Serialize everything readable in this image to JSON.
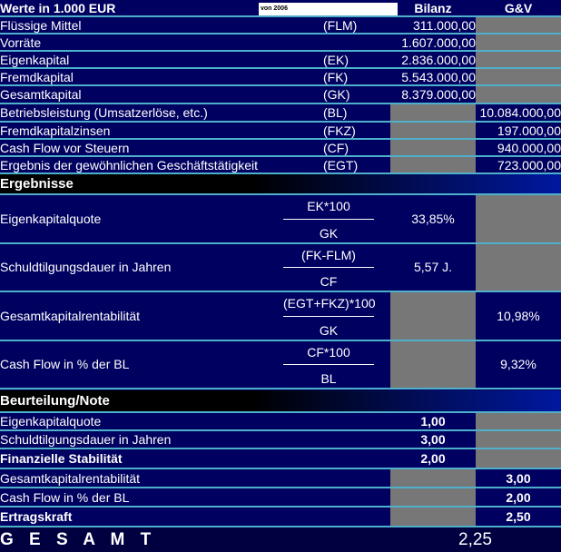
{
  "header": {
    "title": "Werte in 1.000 EUR",
    "year_field": "von 2006",
    "col_bilanz": "Bilanz",
    "col_guv": "G&V"
  },
  "inputs": [
    {
      "label": "Flüssige Mittel",
      "abbr": "(FLM)",
      "bilanz": "311.000,00",
      "guv": ""
    },
    {
      "label": "Vorräte",
      "abbr": "",
      "bilanz": "1.607.000,00",
      "guv": ""
    },
    {
      "label": "Eigenkapital",
      "abbr": "(EK)",
      "bilanz": "2.836.000,00",
      "guv": ""
    },
    {
      "label": "Fremdkapital",
      "abbr": "(FK)",
      "bilanz": "5.543.000,00",
      "guv": ""
    },
    {
      "label": "Gesamtkapital",
      "abbr": "(GK)",
      "bilanz": "8.379.000,00",
      "guv": ""
    },
    {
      "label": "Betriebsleistung (Umsatzerlöse, etc.)",
      "abbr": "(BL)",
      "bilanz": "",
      "guv": "10.084.000,00"
    },
    {
      "label": "Fremdkapitalzinsen",
      "abbr": "(FKZ)",
      "bilanz": "",
      "guv": "197.000,00"
    },
    {
      "label": "Cash Flow vor Steuern",
      "abbr": "(CF)",
      "bilanz": "",
      "guv": "940.000,00"
    },
    {
      "label": "Ergebnis der gewöhnlichen Geschäftstätigkeit",
      "abbr": "(EGT)",
      "bilanz": "",
      "guv": "723.000,00"
    }
  ],
  "results": {
    "title": "Ergebnisse",
    "rows": [
      {
        "label": "Eigenkapitalquote",
        "num": "EK*100",
        "den": "GK",
        "bilanz": "33,85%",
        "guv": ""
      },
      {
        "label": "Schuldtilgungsdauer in Jahren",
        "num": "(FK-FLM)",
        "den": "CF",
        "bilanz": "5,57 J.",
        "guv": ""
      },
      {
        "label": "Gesamtkapitalrentabilität",
        "num": "(EGT+FKZ)*100",
        "den": "GK",
        "bilanz": "",
        "guv": "10,98%"
      },
      {
        "label": "Cash Flow in % der BL",
        "num": "CF*100",
        "den": "BL",
        "bilanz": "",
        "guv": "9,32%"
      }
    ]
  },
  "rating": {
    "title": "Beurteilung/Note",
    "rows": [
      {
        "label": "Eigenkapitalquote",
        "bilanz": "1,00",
        "guv": "",
        "bold": false
      },
      {
        "label": "Schuldtilgungsdauer in Jahren",
        "bilanz": "3,00",
        "guv": "",
        "bold": false
      },
      {
        "label": "Finanzielle Stabilität",
        "bilanz": "2,00",
        "guv": "",
        "bold": true
      },
      {
        "label": "Gesamtkapitalrentabilität",
        "bilanz": "",
        "guv": "3,00",
        "bold": false
      },
      {
        "label": "Cash Flow in % der BL",
        "bilanz": "",
        "guv": "2,00",
        "bold": false
      },
      {
        "label": "Ertragskraft",
        "bilanz": "",
        "guv": "2,50",
        "bold": true
      }
    ]
  },
  "total": {
    "label": "GESAMT",
    "value": "2,25"
  },
  "colors": {
    "background": "#000060",
    "separator": "#4fb0cc",
    "empty_cell": "#777777"
  }
}
